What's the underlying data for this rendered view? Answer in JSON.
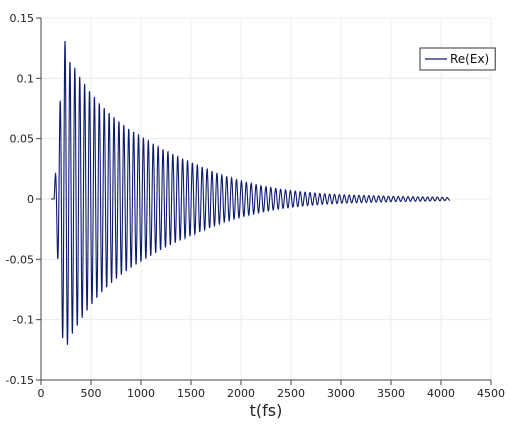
{
  "chart_data": {
    "type": "line",
    "title": "",
    "xlabel": "t(fs)",
    "ylabel": "",
    "xlim": [
      0,
      4500
    ],
    "ylim": [
      -0.15,
      0.15
    ],
    "x_ticks": [
      "0",
      "500",
      "1000",
      "1500",
      "2000",
      "2500",
      "3000",
      "3500",
      "4000",
      "4500"
    ],
    "y_ticks": [
      "0.15",
      "0.1",
      "0.05",
      "0",
      "-0.05",
      "-0.1",
      "-0.15"
    ],
    "grid": true,
    "legend": {
      "placement": "top-right"
    },
    "series": [
      {
        "name": "Re(Ex)",
        "color": "#0d1b6e",
        "x_start": 130,
        "x_end": 4090,
        "period": 49,
        "envelope": {
          "t": [
            130,
            180,
            230,
            280,
            330,
            400,
            500,
            600,
            700,
            800,
            900,
            1000,
            1200,
            1400,
            1600,
            1800,
            2000,
            2200,
            2400,
            2600,
            2800,
            3000,
            3200,
            3400,
            3600,
            3800,
            4000,
            4090
          ],
          "amp": [
            0.004,
            0.065,
            0.135,
            0.115,
            0.11,
            0.1,
            0.088,
            0.078,
            0.07,
            0.063,
            0.057,
            0.052,
            0.042,
            0.034,
            0.027,
            0.02,
            0.015,
            0.011,
            0.008,
            0.006,
            0.0045,
            0.0035,
            0.003,
            0.0025,
            0.002,
            0.0018,
            0.0015,
            0.001
          ]
        }
      }
    ]
  }
}
